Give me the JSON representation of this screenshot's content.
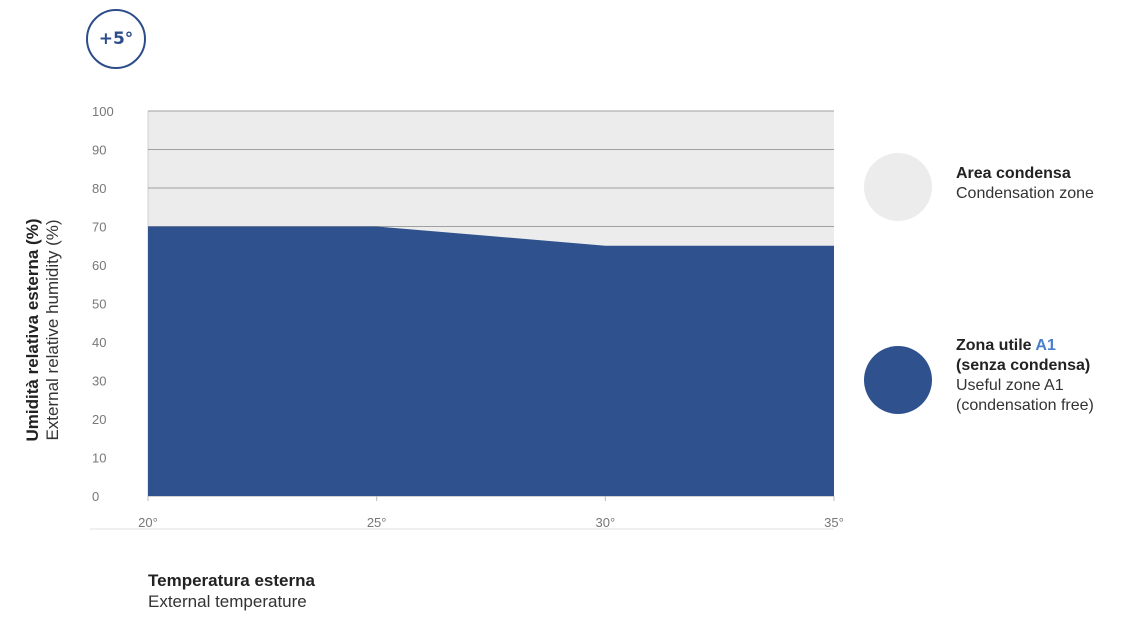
{
  "badge": "+5°",
  "y_axis": {
    "title_it": "Umidità relativa esterna (%)",
    "title_en": "External relative humidity (%)"
  },
  "x_axis": {
    "title_it": "Temperatura esterna",
    "title_en": "External temperature"
  },
  "legend": {
    "condensation": {
      "title": "Area condensa",
      "subtitle": "Condensation zone",
      "color": "#ececec"
    },
    "useful": {
      "title_prefix": "Zona utile ",
      "title_accent": "A1",
      "title_line2": "(senza condensa)",
      "subtitle_line1": "Useful zone A1",
      "subtitle_line2": "(condensation free)",
      "color": "#2f528f"
    }
  },
  "chart_data": {
    "type": "area",
    "x_ticks": [
      "20°",
      "25°",
      "30°",
      "35°"
    ],
    "y_ticks": [
      "0",
      "10",
      "20",
      "30",
      "40",
      "50",
      "60",
      "70",
      "80",
      "90",
      "100"
    ],
    "x": [
      20,
      25,
      30,
      35
    ],
    "series": [
      {
        "name": "Zona utile A1 (senza condensa)",
        "values": [
          70,
          70,
          65,
          65
        ]
      }
    ],
    "xlim": [
      20,
      35
    ],
    "ylim": [
      0,
      100
    ],
    "grid": true,
    "background_color": "#ececec",
    "fill_color": "#2f528f",
    "accent_color": "#4a7fc8"
  }
}
